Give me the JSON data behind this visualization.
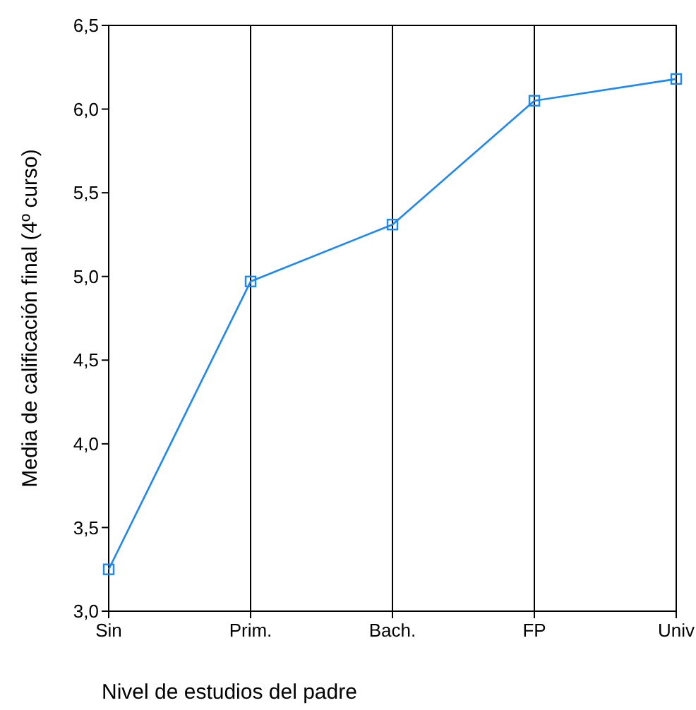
{
  "chart_data": {
    "type": "line",
    "xlabel": "Nivel de estudios del padre",
    "ylabel": "Media de calificación final (4º curso)",
    "categories": [
      "Sin",
      "Prim.",
      "Bach.",
      "FP",
      "Univ"
    ],
    "series": [
      {
        "color": "#1e88f0",
        "values": [
          3.25,
          4.97,
          5.31,
          6.05,
          6.18
        ]
      }
    ],
    "ylim": [
      3.0,
      6.5
    ],
    "yticks": [
      {
        "value": 3.0,
        "label": "3,0"
      },
      {
        "value": 3.5,
        "label": "3,5"
      },
      {
        "value": 4.0,
        "label": "4,0"
      },
      {
        "value": 4.5,
        "label": "4,5"
      },
      {
        "value": 5.0,
        "label": "5,0"
      },
      {
        "value": 5.5,
        "label": "5,5"
      },
      {
        "value": 6.0,
        "label": "6,0"
      },
      {
        "value": 6.5,
        "label": "6,5"
      }
    ],
    "grid": "x",
    "marker": "square",
    "line_style": "solid"
  }
}
